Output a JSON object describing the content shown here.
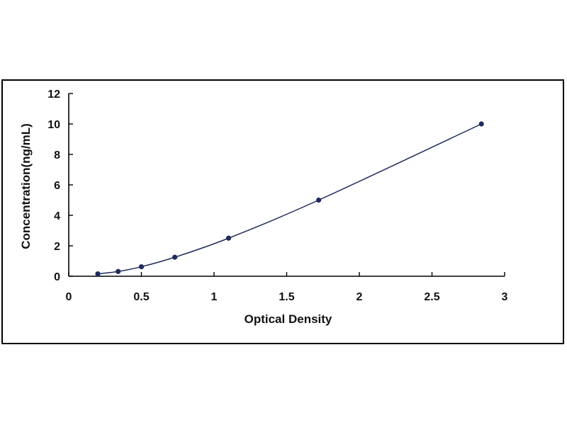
{
  "chart_data": {
    "type": "scatter",
    "title": "",
    "xlabel": "Optical Density",
    "ylabel": "Concentration(ng/mL)",
    "xlim": [
      0,
      3
    ],
    "ylim": [
      0,
      12
    ],
    "x_ticks": [
      "0",
      "0.5",
      "1",
      "1.5",
      "2",
      "2.5",
      "3"
    ],
    "y_ticks": [
      "0",
      "2",
      "4",
      "6",
      "8",
      "10",
      "12"
    ],
    "grid": false,
    "legend": "none",
    "series": [
      {
        "points": [
          {
            "x": 0.2,
            "y": 0.156
          },
          {
            "x": 0.34,
            "y": 0.313
          },
          {
            "x": 0.5,
            "y": 0.625
          },
          {
            "x": 0.73,
            "y": 1.25
          },
          {
            "x": 1.1,
            "y": 2.5
          },
          {
            "x": 1.72,
            "y": 5
          },
          {
            "x": 2.84,
            "y": 10
          }
        ],
        "fit": "smooth curve",
        "color": "#1f2b5c"
      }
    ]
  }
}
